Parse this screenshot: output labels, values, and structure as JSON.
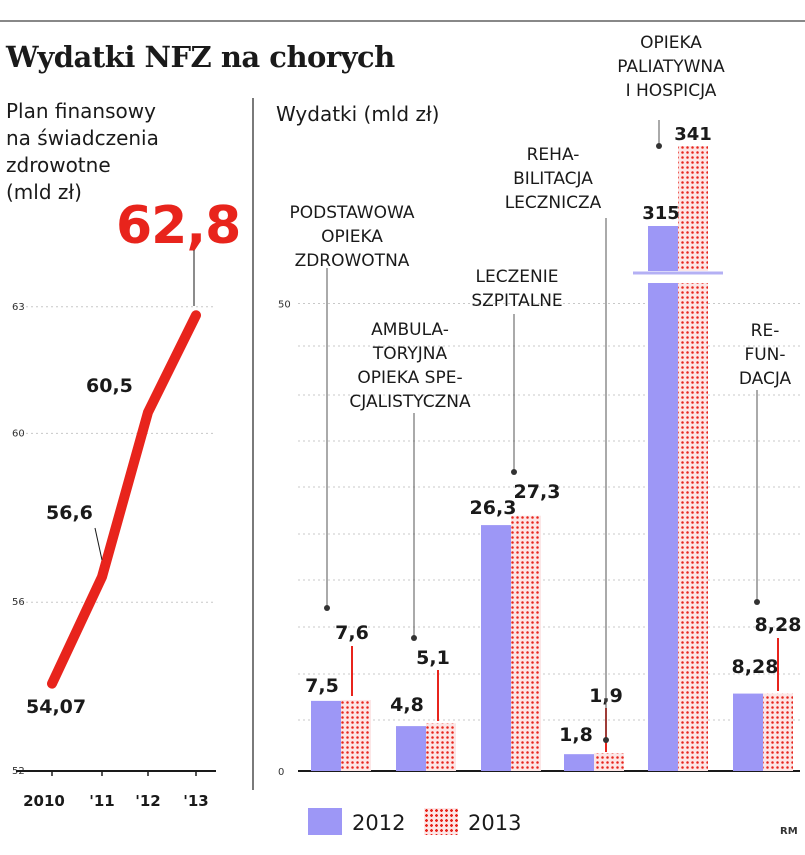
{
  "title": "Wydatki NFZ na chorych",
  "credit": "RM",
  "colors": {
    "bar_2012": "#9d97f6",
    "bar_2013_dots": "#e8241c",
    "bar_2013_bg": "#fce6e6",
    "line": "#e8241c",
    "text": "#1a1a1a"
  },
  "chart_data": [
    {
      "type": "line",
      "title": "Plan finansowy na świadczenia zdrowotne (mld zł)",
      "title_lines": [
        "Plan finansowy",
        "na świadczenia",
        "zdrowotne",
        "(mld zł)"
      ],
      "categories": [
        "2010",
        "'11",
        "'12",
        "'13"
      ],
      "values": [
        54.07,
        56.6,
        60.5,
        62.8
      ],
      "value_labels": [
        "54,07",
        "56,6",
        "60,5",
        "62,8"
      ],
      "yticks": [
        "52",
        "56",
        "60",
        "63"
      ],
      "ylim": [
        52,
        63.5
      ],
      "grid": true,
      "color": "#e8241c"
    },
    {
      "type": "bar",
      "ylabel": "Wydatki (mld zł)",
      "categories": [
        "PODSTAWOWA OPIEKA ZDROWOTNA",
        "AMBULATORYJNA OPIEKA SPECJALISTYCZNA",
        "LECZENIE SZPITALNE",
        "REHABILITACJA LECZNICZA",
        "OPIEKA PALIATYWNA I HOSPICJA",
        "REFUNDACJA"
      ],
      "category_label_lines": [
        [
          "PODSTAWOWA",
          "OPIEKA",
          "ZDROWOTNA"
        ],
        [
          "AMBULA-",
          "TORYJNA",
          "OPIEKA SPE-",
          "CJALISTYCZNA"
        ],
        [
          "LECZENIE",
          "SZPITALNE"
        ],
        [
          "REHA-",
          "BILITACJA",
          "LECZNICZA"
        ],
        [
          "OPIEKA",
          "PALIATYWNA",
          "I HOSPICJA"
        ],
        [
          "RE-",
          "FUN-",
          "DACJA"
        ]
      ],
      "series": [
        {
          "name": "2012",
          "values": [
            7.5,
            4.8,
            26.3,
            1.8,
            315,
            8.28
          ],
          "labels": [
            "7,5",
            "4,8",
            "26,3",
            "1,8",
            "315",
            "8,28"
          ]
        },
        {
          "name": "2013",
          "values": [
            7.6,
            5.1,
            27.3,
            1.9,
            341,
            8.28
          ],
          "labels": [
            "7,6",
            "5,1",
            "27,3",
            "1,9",
            "341",
            "8,28"
          ]
        }
      ],
      "yticks": [
        "0",
        "50"
      ],
      "ylim": [
        0,
        50
      ],
      "axis_break": true,
      "grid": true,
      "legend": {
        "position": "bottom",
        "items": [
          "2012",
          "2013"
        ]
      }
    }
  ]
}
